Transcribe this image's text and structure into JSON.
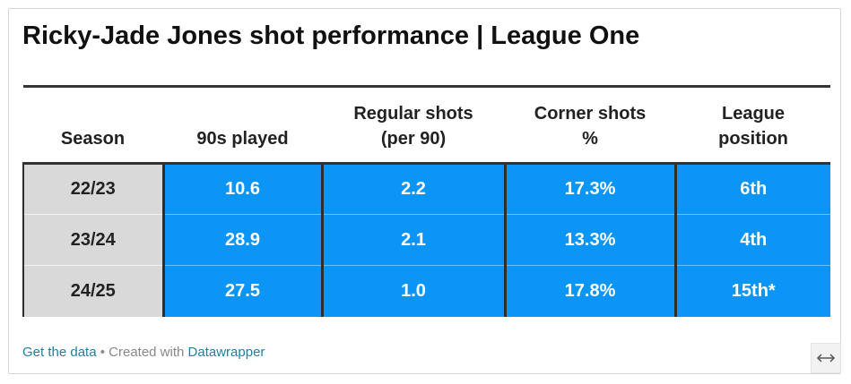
{
  "title": "Ricky-Jade Jones shot performance | League One",
  "chart_data": {
    "type": "table",
    "title": "Ricky-Jade Jones shot performance | League One",
    "columns": [
      {
        "key": "season",
        "line1": "",
        "line2": "Season"
      },
      {
        "key": "played",
        "line1": "",
        "line2": "90s played"
      },
      {
        "key": "regular",
        "line1": "Regular shots",
        "line2": "(per 90)"
      },
      {
        "key": "corner",
        "line1": "Corner shots",
        "line2": "%"
      },
      {
        "key": "position",
        "line1": "League",
        "line2": "position"
      }
    ],
    "rows": [
      {
        "season": "22/23",
        "played": "10.6",
        "regular": "2.2",
        "corner": "17.3%",
        "position": "6th"
      },
      {
        "season": "23/24",
        "played": "28.9",
        "regular": "2.1",
        "corner": "13.3%",
        "position": "4th"
      },
      {
        "season": "24/25",
        "played": "27.5",
        "regular": "1.0",
        "corner": "17.8%",
        "position": "15th*"
      }
    ],
    "colors": {
      "value_cell": "#0a95f7",
      "season_cell": "#d9d9d9",
      "rule": "#333333"
    }
  },
  "footer": {
    "get_data": "Get the data",
    "separator": " • Created with ",
    "datawrapper": "Datawrapper"
  },
  "resize_icon": "horizontal-resize-arrows-icon"
}
